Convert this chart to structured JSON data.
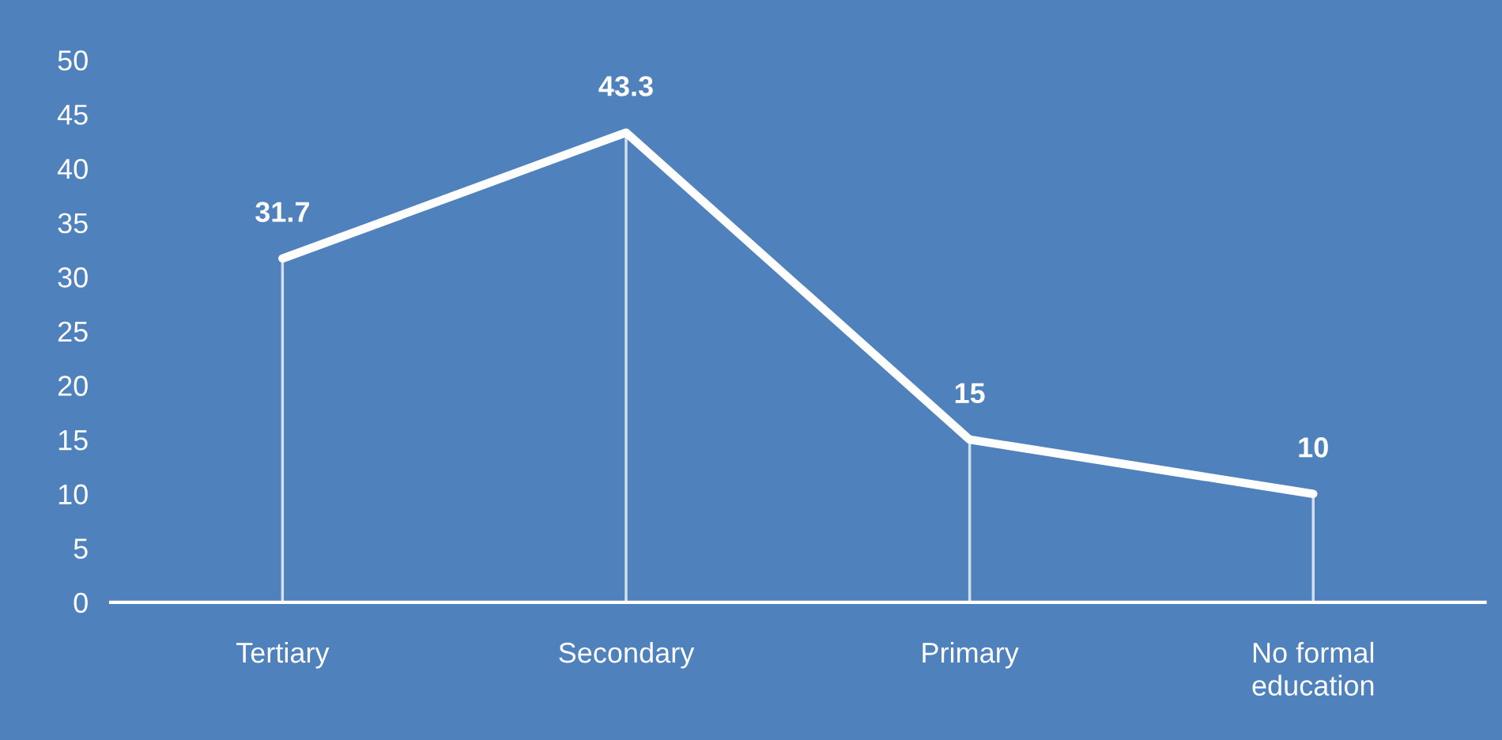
{
  "chart_data": {
    "type": "line",
    "categories": [
      "Tertiary",
      "Secondary",
      "Primary",
      "No formal\neducation"
    ],
    "series": [
      {
        "type": "bar",
        "color": "#ffffff",
        "values": [
          31.7,
          43.3,
          15,
          10
        ]
      },
      {
        "color": "#ffffff",
        "values": [
          31.7,
          43.3,
          15,
          10
        ],
        "value_labels": [
          "31.7",
          "43.3",
          "15",
          "10"
        ]
      }
    ],
    "ylim": [
      0,
      50
    ],
    "yticks": [
      0,
      5,
      10,
      15,
      20,
      25,
      30,
      35,
      40,
      45,
      50
    ],
    "grid": false,
    "legend": false,
    "marker": "none",
    "line_style": "solid"
  }
}
